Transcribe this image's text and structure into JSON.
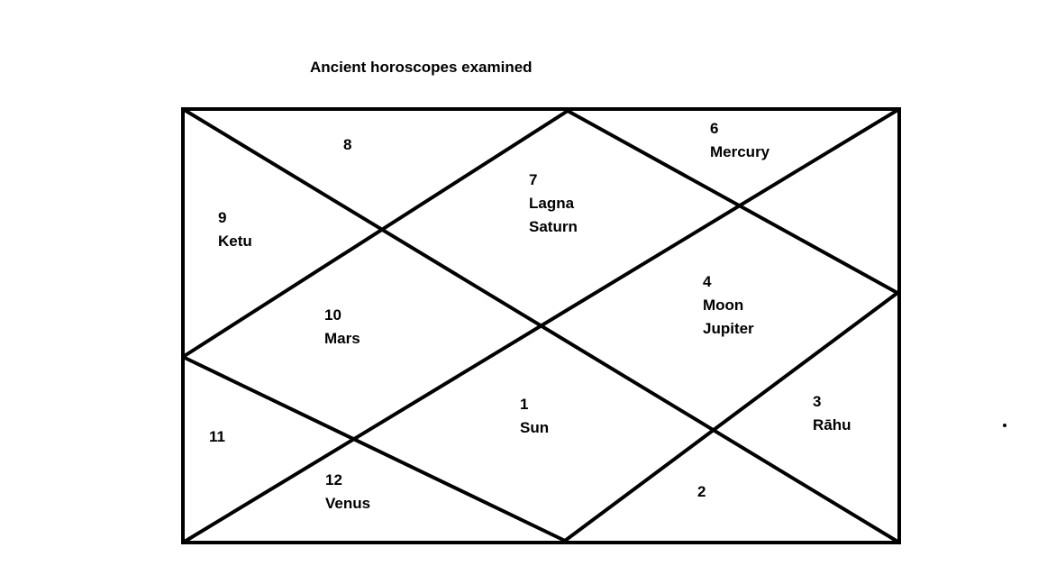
{
  "title": "Ancient horoscopes examined",
  "houses": [
    {
      "number": "8",
      "planets": []
    },
    {
      "number": "7",
      "planets": [
        "Lagna",
        "Saturn"
      ]
    },
    {
      "number": "6",
      "planets": [
        "Mercury"
      ]
    },
    {
      "number": "9",
      "planets": [
        "Ketu"
      ]
    },
    {
      "number": "10",
      "planets": [
        "Mars"
      ]
    },
    {
      "number": "4",
      "planets": [
        "Moon",
        "Jupiter"
      ]
    },
    {
      "number": "1",
      "planets": [
        "Sun"
      ]
    },
    {
      "number": "3",
      "planets": [
        "Rāhu"
      ]
    },
    {
      "number": "11",
      "planets": []
    },
    {
      "number": "12",
      "planets": [
        "Venus"
      ]
    },
    {
      "number": "2",
      "planets": []
    }
  ],
  "colors": {
    "line": "#000000",
    "background": "#ffffff"
  }
}
